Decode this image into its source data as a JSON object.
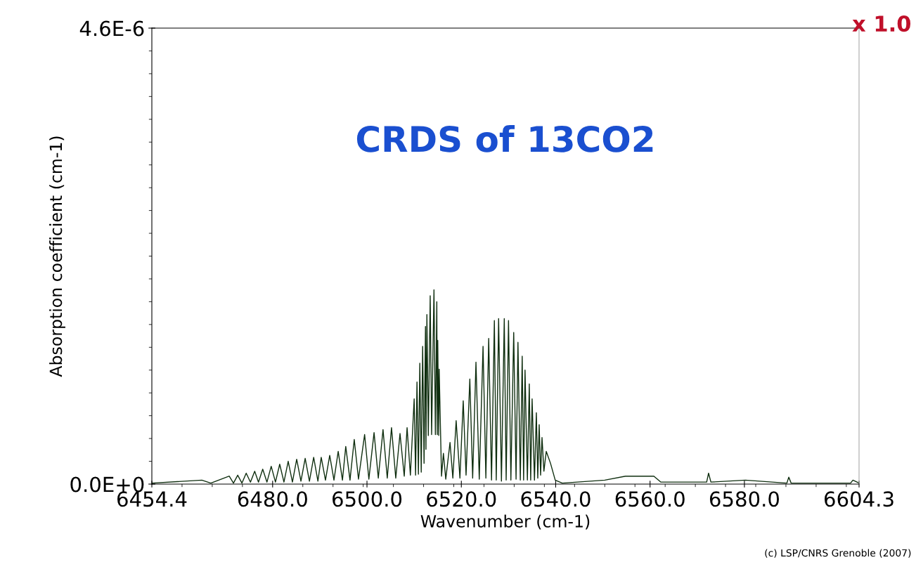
{
  "chart_data": {
    "type": "line",
    "title": "CRDS of 13CO2",
    "xlabel": "Wavenumber (cm-1)",
    "ylabel": "Absorption coefficient (cm-1)",
    "annotations": [
      "x 1.0",
      "(c) LSP/CNRS Grenoble (2007)"
    ],
    "xlim": [
      6454.4,
      6604.3
    ],
    "ylim": [
      0,
      4.6e-06
    ],
    "xticks": [
      {
        "value": 6454.4,
        "label": "6454.4"
      },
      {
        "value": 6480,
        "label": "6480.0"
      },
      {
        "value": 6500,
        "label": "6500.0"
      },
      {
        "value": 6520,
        "label": "6520.0"
      },
      {
        "value": 6540,
        "label": "6540.0"
      },
      {
        "value": 6560,
        "label": "6560.0"
      },
      {
        "value": 6580,
        "label": "6580.0"
      },
      {
        "value": 6604.3,
        "label": "6604.3"
      }
    ],
    "yticks": [
      {
        "value": 0,
        "label": "0.0E+0"
      },
      {
        "value": 4.6e-06,
        "label": "4.6E-6"
      }
    ],
    "grid": false,
    "legend": false,
    "marker": "none",
    "line_style": "solid",
    "series": [
      {
        "color": "#0f2e0f",
        "x": [
          6454.4,
          6465.0,
          6466.9,
          6470.8,
          6471.7,
          6472.6,
          6473.5,
          6474.4,
          6475.3,
          6476.2,
          6477.0,
          6477.9,
          6478.8,
          6479.7,
          6480.6,
          6481.5,
          6482.4,
          6483.3,
          6484.2,
          6485.1,
          6486.0,
          6486.9,
          6487.8,
          6488.7,
          6489.6,
          6490.3,
          6491.2,
          6492.1,
          6493.0,
          6493.9,
          6494.8,
          6495.5,
          6496.4,
          6497.3,
          6498.2,
          6499.5,
          6500.4,
          6501.5,
          6502.4,
          6503.4,
          6504.3,
          6505.2,
          6506.1,
          6507.0,
          6507.9,
          6508.5,
          6509.2,
          6510.0,
          6510.3,
          6510.6,
          6510.9,
          6511.2,
          6511.5,
          6511.8,
          6512.1,
          6512.4,
          6512.5,
          6512.7,
          6513.0,
          6513.4,
          6513.7,
          6514.2,
          6514.5,
          6514.8,
          6514.9,
          6515.0,
          6515.2,
          6515.3,
          6515.8,
          6516.2,
          6516.7,
          6517.6,
          6518.2,
          6518.9,
          6519.7,
          6520.4,
          6521.0,
          6521.8,
          6522.4,
          6523.1,
          6523.8,
          6524.6,
          6525.2,
          6525.8,
          6526.4,
          6527.0,
          6527.4,
          6527.9,
          6528.5,
          6529.1,
          6529.5,
          6530.0,
          6530.5,
          6531.1,
          6531.6,
          6532.0,
          6532.5,
          6532.9,
          6533.2,
          6533.5,
          6534.0,
          6534.4,
          6534.7,
          6535.0,
          6535.5,
          6535.9,
          6536.2,
          6536.5,
          6536.8,
          6537.1,
          6537.5,
          6538.0,
          6538.9,
          6539.9,
          6541.4,
          6550.4,
          6554.8,
          6560.8,
          6562.3,
          6572.0,
          6572.4,
          6572.9,
          6580.2,
          6589.0,
          6589.4,
          6589.9,
          6602.5,
          6603.0,
          6604.3
        ],
        "values": [
          1e-08,
          4e-08,
          1e-08,
          8e-08,
          1e-08,
          9e-08,
          1e-08,
          1.1e-07,
          2e-08,
          1.3e-07,
          2e-08,
          1.5e-07,
          2e-08,
          1.8e-07,
          2e-08,
          2e-07,
          2e-08,
          2.3e-07,
          2e-08,
          2.5e-07,
          3e-08,
          2.6e-07,
          3e-08,
          2.7e-07,
          3e-08,
          2.7e-07,
          4e-08,
          2.9e-07,
          4e-08,
          3.3e-07,
          4e-08,
          3.8e-07,
          4e-08,
          4.5e-07,
          5e-08,
          5e-07,
          5e-08,
          5.2e-07,
          6e-08,
          5.5e-07,
          6e-08,
          5.7e-07,
          6e-08,
          5.1e-07,
          8e-08,
          5.7e-07,
          9e-08,
          8.6e-07,
          9e-08,
          1.03e-06,
          1e-07,
          1.22e-06,
          1.2e-07,
          1.39e-06,
          2.1e-07,
          1.59e-06,
          3.5e-07,
          1.71e-06,
          4.9e-07,
          1.9e-06,
          5e-07,
          1.96e-06,
          5e-07,
          1.84e-06,
          5e-07,
          1.45e-06,
          4.9e-07,
          1.16e-06,
          8e-08,
          3.1e-07,
          5e-08,
          4.2e-07,
          6e-08,
          6.4e-07,
          6e-08,
          8.4e-07,
          9e-08,
          1.06e-06,
          6e-08,
          1.23e-06,
          5e-08,
          1.39e-06,
          6e-08,
          1.47e-06,
          4e-08,
          1.65e-06,
          4e-08,
          1.67e-06,
          3e-08,
          1.67e-06,
          4e-08,
          1.65e-06,
          4e-08,
          1.53e-06,
          5e-08,
          1.43e-06,
          4e-08,
          1.29e-06,
          4e-08,
          1.15e-06,
          4e-08,
          1.01e-06,
          4e-08,
          8.6e-07,
          4e-08,
          7.2e-07,
          6e-08,
          6e-07,
          9e-08,
          4.7e-07,
          1.3e-07,
          3.3e-07,
          2.1e-07,
          4e-08,
          1e-08,
          4e-08,
          8e-08,
          8e-08,
          2e-08,
          2e-08,
          1.1e-07,
          2e-08,
          4e-08,
          1e-08,
          7e-08,
          1e-08,
          1e-08,
          4e-08,
          1e-08
        ]
      }
    ]
  }
}
